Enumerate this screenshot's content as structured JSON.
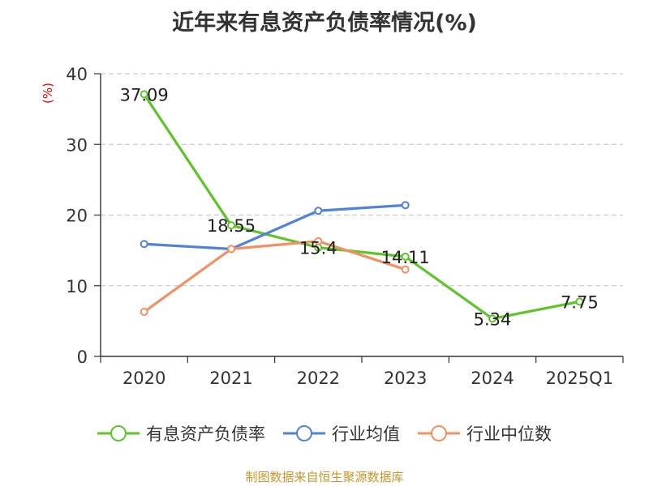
{
  "chart_data": {
    "type": "line",
    "title": "近年来有息资产负债率情况(%)",
    "ylabel": "(%)",
    "xlabel": "",
    "categories": [
      "2020",
      "2021",
      "2022",
      "2023",
      "2024",
      "2025Q1"
    ],
    "ylim": [
      0,
      40
    ],
    "yticks": [
      0,
      10,
      20,
      30,
      40
    ],
    "grid": true,
    "legend_position": "bottom",
    "series": [
      {
        "name": "有息资产负债率",
        "color": "#5ec42a",
        "labels": true,
        "values": [
          37.09,
          18.55,
          15.4,
          14.11,
          5.34,
          7.75
        ]
      },
      {
        "name": "行业均值",
        "color": "#4f82d9",
        "labels": false,
        "values": [
          15.9,
          15.2,
          20.6,
          21.4,
          null,
          null
        ]
      },
      {
        "name": "行业中位数",
        "color": "#f39063",
        "labels": false,
        "values": [
          6.3,
          15.2,
          16.3,
          12.3,
          null,
          null
        ]
      }
    ]
  },
  "source": "制图数据来自恒生聚源数据库"
}
